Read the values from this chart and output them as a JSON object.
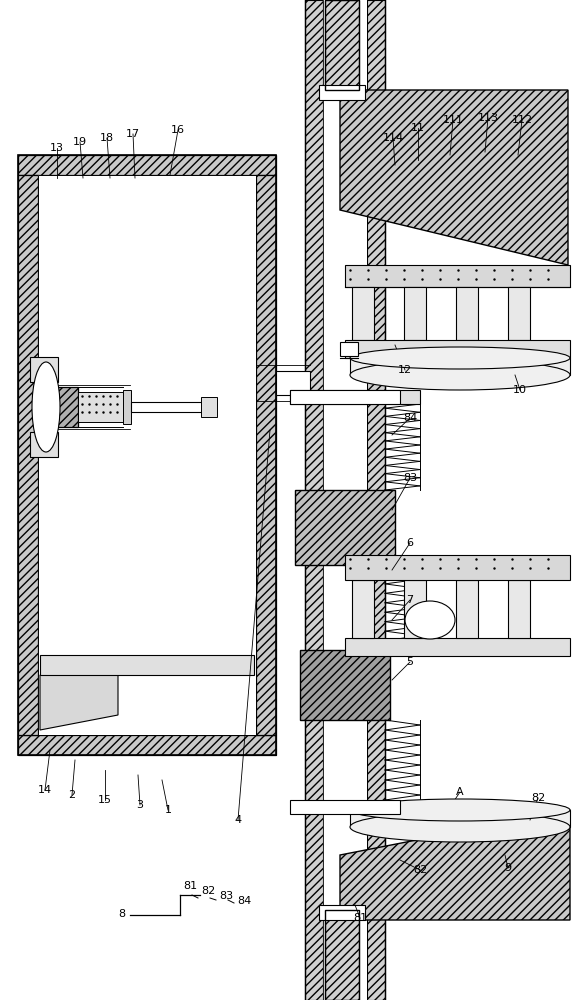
{
  "figsize": [
    5.72,
    10.0
  ],
  "dpi": 100,
  "bg_color": "#ffffff",
  "xlim": [
    0,
    572
  ],
  "ylim": [
    0,
    1000
  ]
}
